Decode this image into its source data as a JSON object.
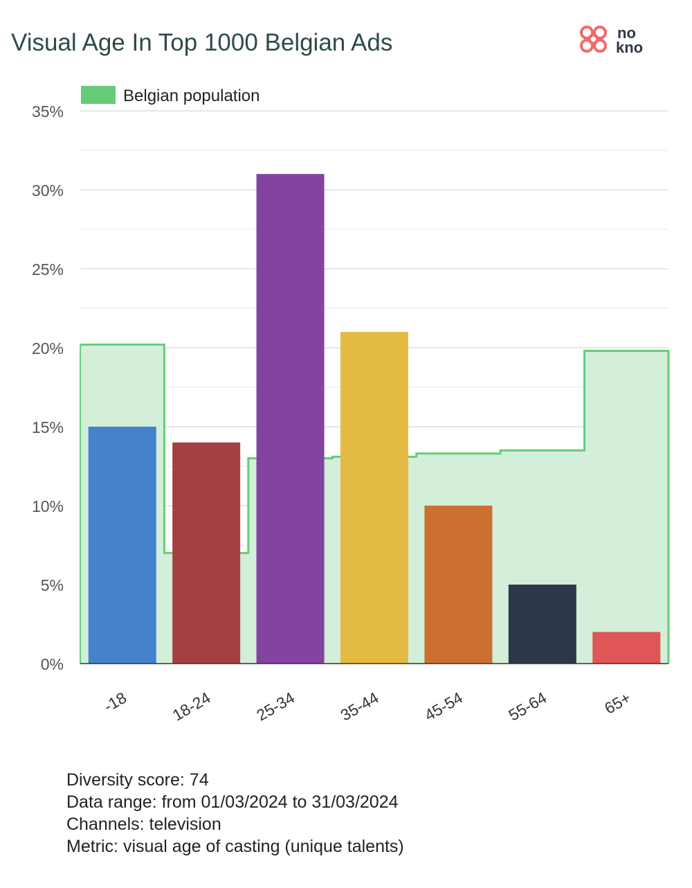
{
  "title": "Visual Age In Top 1000 Belgian Ads",
  "logo": {
    "text_top": "no",
    "text_bottom": "kno",
    "icon": "flower-logo-icon",
    "color": "#f06a6a"
  },
  "chart_data": {
    "type": "bar",
    "categories": [
      "-18",
      "18-24",
      "25-34",
      "35-44",
      "45-54",
      "55-64",
      "65+"
    ],
    "values": [
      15,
      14,
      31,
      21,
      10,
      5,
      2
    ],
    "bar_colors": [
      "#4682cc",
      "#a54042",
      "#8244a0",
      "#e3bb42",
      "#cc6f31",
      "#2c3749",
      "#e05555"
    ],
    "series": [
      {
        "name": "Belgian population",
        "type": "step-area",
        "values": [
          20.2,
          7,
          13,
          13.1,
          13.3,
          13.5,
          19.8
        ],
        "color": "#66cc77",
        "fill": "#d3eed9"
      }
    ],
    "ylim": [
      0,
      35
    ],
    "y_ticks": [
      0,
      5,
      10,
      15,
      20,
      25,
      30,
      35
    ],
    "y_tick_suffix": "%",
    "grid": true,
    "legend": "top-left"
  },
  "footer": {
    "lines": [
      "Diversity score: 74",
      "Data range: from 01/03/2024 to 31/03/2024",
      "Channels: television",
      "Metric: visual age of casting (unique talents)"
    ]
  }
}
